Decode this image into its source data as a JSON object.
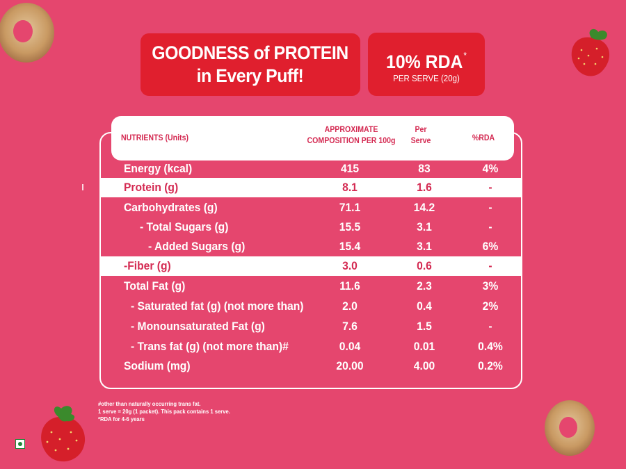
{
  "banner": {
    "headline_line1": "GOODNESS of PROTEIN",
    "headline_line2": "in Every Puff!",
    "rda_value": "10% RDA",
    "rda_mark": "*",
    "rda_sub": "PER SERVE (20g)"
  },
  "table": {
    "headers": {
      "nutrients": "NUTRIENTS (Units)",
      "approx_line1": "APPROXIMATE",
      "approx_line2": "COMPOSITION PER 100g",
      "serve_line1": "Per",
      "serve_line2": "Serve",
      "rda": "%RDA"
    },
    "rows": [
      {
        "name": "Energy (kcal)",
        "per100": "415",
        "serve": "83",
        "rda": "4%"
      },
      {
        "name": "Protein (g)",
        "per100": "8.1",
        "serve": "1.6",
        "rda": "-"
      },
      {
        "name": "Carbohydrates (g)",
        "per100": "71.1",
        "serve": "14.2",
        "rda": "-"
      },
      {
        "name": "- Total Sugars (g)",
        "per100": "15.5",
        "serve": "3.1",
        "rda": "-"
      },
      {
        "name": "- Added Sugars (g)",
        "per100": "15.4",
        "serve": "3.1",
        "rda": "6%"
      },
      {
        "name": "-Fiber (g)",
        "per100": "3.0",
        "serve": "0.6",
        "rda": "-"
      },
      {
        "name": "Total Fat (g)",
        "per100": "11.6",
        "serve": "2.3",
        "rda": "3%"
      },
      {
        "name": "- Saturated fat (g) (not more than)",
        "per100": "2.0",
        "serve": "0.4",
        "rda": "2%"
      },
      {
        "name": "- Monounsaturated Fat (g)",
        "per100": "7.6",
        "serve": "1.5",
        "rda": "-"
      },
      {
        "name": "- Trans fat (g) (not more than)#",
        "per100": "0.04",
        "serve": "0.01",
        "rda": "0.4%"
      },
      {
        "name": "Sodium (mg)",
        "per100": "20.00",
        "serve": "4.00",
        "rda": "0.2%"
      }
    ]
  },
  "footnotes": [
    "#other than naturally occurring trans fat.",
    "1 serve = 20g (1 packet). This pack contains 1 serve.",
    "*RDA for 4-6 years"
  ],
  "colors": {
    "background": "#e5466e",
    "banner": "#e01f2e",
    "table_text_on_white": "#d42a52",
    "veg_mark": "#1f8a3b"
  },
  "icons": [
    "puff-ring-icon",
    "strawberry-icon",
    "veg-mark-icon"
  ]
}
